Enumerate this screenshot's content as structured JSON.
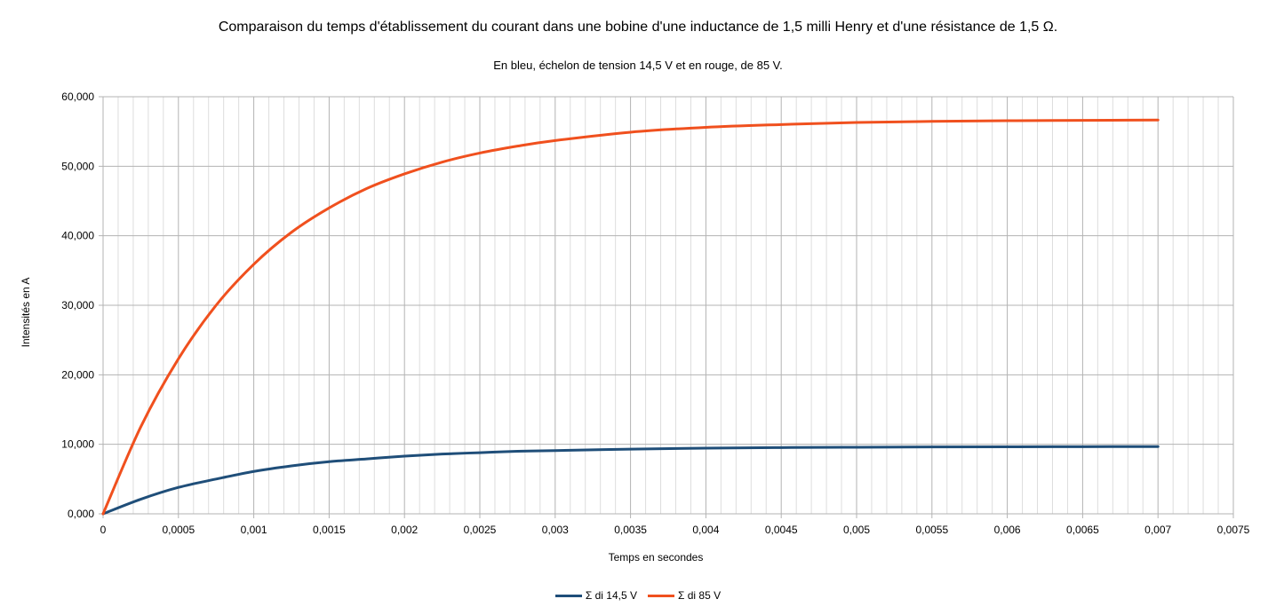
{
  "chart_data": {
    "type": "line",
    "title": "Comparaison du temps d'établissement du courant dans une bobine d'une inductance de 1,5 milli Henry et d'une résistance de 1,5 Ω.",
    "subtitle": "En bleu, échelon de tension 14,5 V et en rouge, de 85 V.",
    "xlabel": "Temps en secondes",
    "ylabel": "Intensités en A",
    "xlim": [
      0,
      0.0075
    ],
    "ylim": [
      0,
      60
    ],
    "x_ticks": [
      "0",
      "0,0005",
      "0,001",
      "0,0015",
      "0,002",
      "0,0025",
      "0,003",
      "0,0035",
      "0,004",
      "0,0045",
      "0,005",
      "0,0055",
      "0,006",
      "0,0065",
      "0,007",
      "0,0075"
    ],
    "y_ticks": [
      "0,000",
      "10,000",
      "20,000",
      "30,000",
      "40,000",
      "50,000",
      "60,000"
    ],
    "grid": true,
    "legend_position": "bottom",
    "x": [
      0,
      0.00025,
      0.0005,
      0.00075,
      0.001,
      0.00125,
      0.0015,
      0.00175,
      0.002,
      0.00225,
      0.0025,
      0.00275,
      0.003,
      0.0035,
      0.004,
      0.0045,
      0.005,
      0.0055,
      0.006,
      0.0065,
      0.007
    ],
    "series": [
      {
        "name": "Σ di 14,5 V",
        "color": "#1f4e79",
        "values": [
          0,
          2.1,
          3.8,
          5.0,
          6.1,
          6.9,
          7.5,
          7.9,
          8.3,
          8.6,
          8.8,
          9.0,
          9.1,
          9.3,
          9.45,
          9.53,
          9.58,
          9.62,
          9.64,
          9.66,
          9.67
        ]
      },
      {
        "name": "Σ di 85 V",
        "color": "#f0501e",
        "values": [
          0,
          12.5,
          22.3,
          30.0,
          35.9,
          40.5,
          44.0,
          46.8,
          48.9,
          50.6,
          51.9,
          52.9,
          53.7,
          54.9,
          55.6,
          56.0,
          56.3,
          56.45,
          56.55,
          56.6,
          56.65
        ]
      }
    ]
  }
}
